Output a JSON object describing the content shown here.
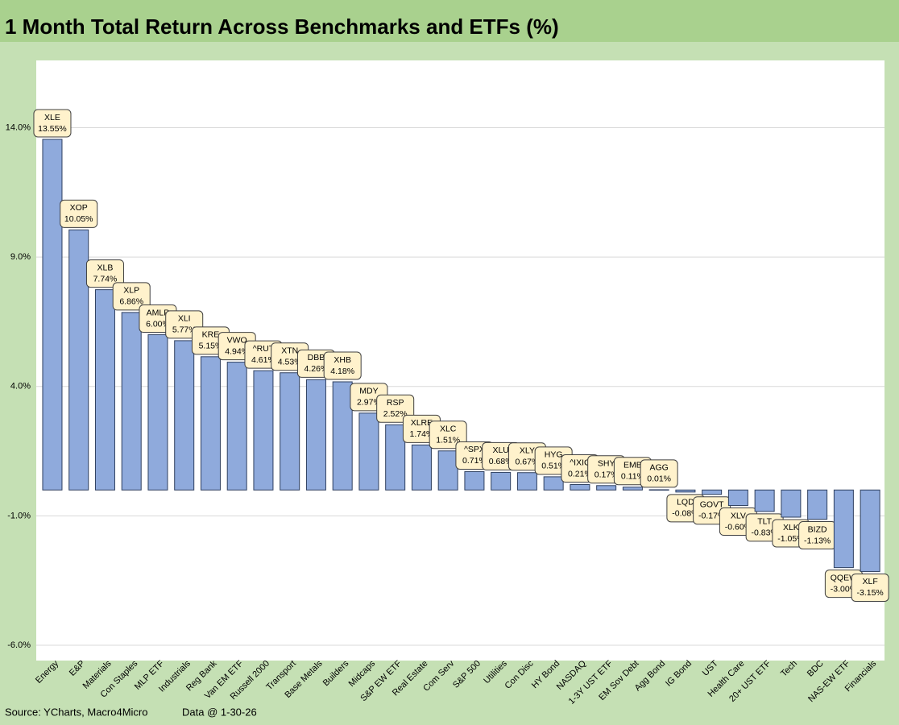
{
  "chart_data": {
    "type": "bar",
    "title": "1 Month Total Return Across Benchmarks and ETFs (%)",
    "categories": [
      "Energy",
      "E&P",
      "Materials",
      "Con Staples",
      "MLP ETF",
      "Industrials",
      "Reg Bank",
      "Van EM ETF",
      "Russell 2000",
      "Transport",
      "Base Metals",
      "Builders",
      "Midcaps",
      "S&P EW ETF",
      "Real Estate",
      "Com Serv",
      "S&P 500",
      "Utilities",
      "Con Disc",
      "HY Bond",
      "NASDAQ",
      "1-3Y UST ETF",
      "EM Sov Debt",
      "Agg Bond",
      "IG Bond",
      "UST",
      "Health Care",
      "20+ UST ETF",
      "Tech",
      "BDC",
      "NAS-EW ETF",
      "Financials"
    ],
    "labels": [
      "XLE",
      "XOP",
      "XLB",
      "XLP",
      "AMLP",
      "XLI",
      "KRE",
      "VWO",
      "^RUT",
      "XTN",
      "DBB",
      "XHB",
      "MDY",
      "RSP",
      "XLRE",
      "XLC",
      "^SPX",
      "XLU",
      "XLY",
      "HYG",
      "^IXIC",
      "SHY",
      "EMB",
      "AGG",
      "LQD",
      "GOVT",
      "XLV",
      "TLT",
      "XLK",
      "BIZD",
      "QQEW",
      "XLF"
    ],
    "values": [
      13.55,
      10.05,
      7.74,
      6.86,
      6.0,
      5.77,
      5.15,
      4.94,
      4.61,
      4.53,
      4.26,
      4.18,
      2.97,
      2.52,
      1.74,
      1.51,
      0.71,
      0.68,
      0.67,
      0.51,
      0.21,
      0.17,
      0.11,
      0.01,
      -0.08,
      -0.17,
      -0.6,
      -0.83,
      -1.05,
      -1.13,
      -3.0,
      -3.15
    ],
    "value_labels": [
      "13.55%",
      "10.05%",
      "7.74%",
      "6.86%",
      "6.00%",
      "5.77%",
      "5.15%",
      "4.94%",
      "4.61%",
      "4.53%",
      "4.26%",
      "4.18%",
      "2.97%",
      "2.52%",
      "1.74%",
      "1.51%",
      "0.71%",
      "0.68%",
      "0.67%",
      "0.51%",
      "0.21%",
      "0.17%",
      "0.11%",
      "0.01%",
      "-0.08%",
      "-0.17%",
      "-0.60%",
      "-0.83%",
      "-1.05%",
      "-1.13%",
      "-3.00%",
      "-3.15%"
    ],
    "color": "#8faadc",
    "ylim": [
      -6,
      16.6
    ],
    "yticks": [
      {
        "value": -6,
        "label": "-6.0%"
      },
      {
        "value": -1,
        "label": "-1.0%"
      },
      {
        "value": 4,
        "label": "4.0%"
      },
      {
        "value": 9,
        "label": "9.0%"
      },
      {
        "value": 14,
        "label": "14.0%"
      }
    ],
    "grid": true,
    "source": "Source: YCharts, Macro4Micro",
    "note": "Data @ 1-30-26"
  }
}
